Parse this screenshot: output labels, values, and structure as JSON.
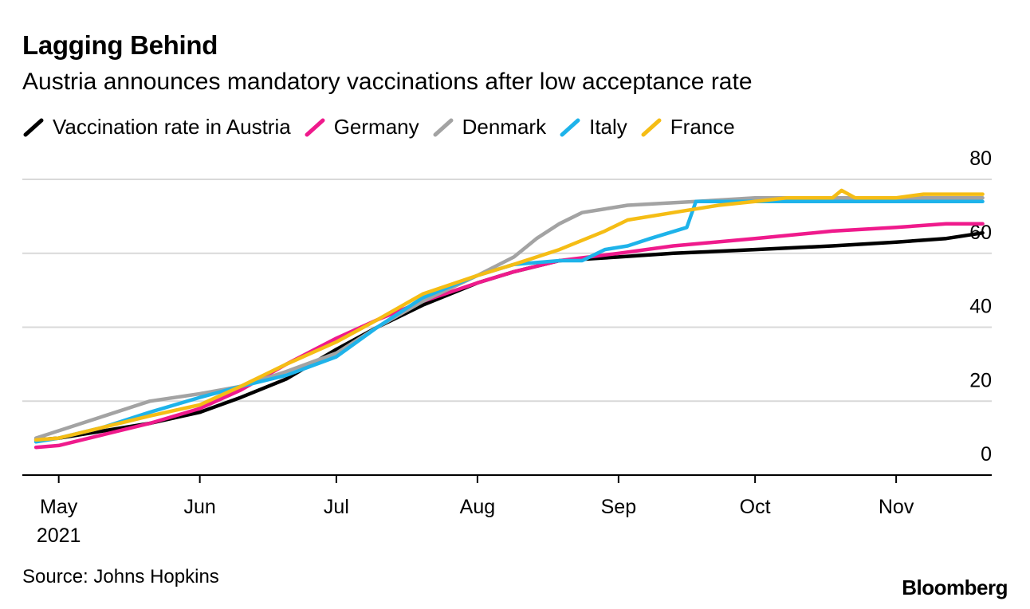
{
  "title": "Lagging Behind",
  "subtitle": "Austria announces mandatory vaccinations after low acceptance rate",
  "source": "Source: Johns Hopkins",
  "brand": "Bloomberg",
  "chart_data": {
    "type": "line",
    "xlabel": "",
    "ylabel": "",
    "ylim": [
      0,
      80
    ],
    "y_ticks": [
      0,
      20,
      40,
      60,
      80
    ],
    "x_domain_days": [
      -8,
      205
    ],
    "x_ticks": [
      {
        "label": "May",
        "day": 0
      },
      {
        "label": "Jun",
        "day": 31
      },
      {
        "label": "Jul",
        "day": 61
      },
      {
        "label": "Aug",
        "day": 92
      },
      {
        "label": "Sep",
        "day": 123
      },
      {
        "label": "Oct",
        "day": 153
      },
      {
        "label": "Nov",
        "day": 184
      }
    ],
    "x_year_label": "2021",
    "series": [
      {
        "name": "Vaccination rate in Austria",
        "color": "#000000",
        "points": [
          [
            -5,
            9.5
          ],
          [
            0,
            10
          ],
          [
            10,
            12
          ],
          [
            20,
            14
          ],
          [
            31,
            17
          ],
          [
            40,
            21
          ],
          [
            50,
            26
          ],
          [
            61,
            34
          ],
          [
            70,
            40
          ],
          [
            80,
            46
          ],
          [
            92,
            52
          ],
          [
            100,
            55
          ],
          [
            110,
            58
          ],
          [
            123,
            59
          ],
          [
            135,
            60
          ],
          [
            153,
            61
          ],
          [
            170,
            62
          ],
          [
            184,
            63
          ],
          [
            195,
            64
          ],
          [
            203,
            65.5
          ]
        ]
      },
      {
        "name": "Germany",
        "color": "#ef1a8c",
        "points": [
          [
            -5,
            7.5
          ],
          [
            0,
            8
          ],
          [
            10,
            11
          ],
          [
            20,
            14
          ],
          [
            31,
            18
          ],
          [
            40,
            23
          ],
          [
            50,
            30
          ],
          [
            61,
            37
          ],
          [
            70,
            42
          ],
          [
            80,
            47
          ],
          [
            92,
            52
          ],
          [
            100,
            55
          ],
          [
            110,
            58
          ],
          [
            123,
            60
          ],
          [
            135,
            62
          ],
          [
            153,
            64
          ],
          [
            170,
            66
          ],
          [
            184,
            67
          ],
          [
            195,
            68
          ],
          [
            203,
            68
          ]
        ]
      },
      {
        "name": "Denmark",
        "color": "#a3a3a3",
        "points": [
          [
            -5,
            10
          ],
          [
            0,
            12
          ],
          [
            10,
            16
          ],
          [
            20,
            20
          ],
          [
            31,
            22
          ],
          [
            40,
            24
          ],
          [
            50,
            28
          ],
          [
            61,
            33
          ],
          [
            70,
            40
          ],
          [
            80,
            47
          ],
          [
            92,
            54
          ],
          [
            100,
            59
          ],
          [
            105,
            64
          ],
          [
            110,
            68
          ],
          [
            115,
            71
          ],
          [
            120,
            72
          ],
          [
            125,
            73
          ],
          [
            140,
            74
          ],
          [
            153,
            75
          ],
          [
            170,
            75
          ],
          [
            184,
            75
          ],
          [
            203,
            75
          ]
        ]
      },
      {
        "name": "Italy",
        "color": "#1eb3ea",
        "points": [
          [
            -5,
            9
          ],
          [
            0,
            10
          ],
          [
            10,
            13
          ],
          [
            20,
            17
          ],
          [
            31,
            21
          ],
          [
            40,
            24
          ],
          [
            50,
            27
          ],
          [
            61,
            32
          ],
          [
            70,
            40
          ],
          [
            80,
            48
          ],
          [
            92,
            54
          ],
          [
            100,
            57
          ],
          [
            110,
            58
          ],
          [
            115,
            58
          ],
          [
            120,
            61
          ],
          [
            125,
            62
          ],
          [
            130,
            64
          ],
          [
            138,
            67
          ],
          [
            140,
            74
          ],
          [
            153,
            74
          ],
          [
            170,
            74
          ],
          [
            184,
            74
          ],
          [
            203,
            74
          ]
        ]
      },
      {
        "name": "France",
        "color": "#f5bd15",
        "points": [
          [
            -5,
            9.5
          ],
          [
            0,
            10
          ],
          [
            10,
            13
          ],
          [
            20,
            16
          ],
          [
            31,
            19
          ],
          [
            40,
            24
          ],
          [
            50,
            30
          ],
          [
            61,
            36
          ],
          [
            70,
            42
          ],
          [
            80,
            49
          ],
          [
            92,
            54
          ],
          [
            100,
            57
          ],
          [
            110,
            61
          ],
          [
            120,
            66
          ],
          [
            125,
            69
          ],
          [
            135,
            71
          ],
          [
            145,
            73
          ],
          [
            153,
            74
          ],
          [
            160,
            75
          ],
          [
            170,
            75
          ],
          [
            172,
            77
          ],
          [
            175,
            75
          ],
          [
            184,
            75
          ],
          [
            190,
            76
          ],
          [
            203,
            76
          ]
        ]
      }
    ]
  }
}
